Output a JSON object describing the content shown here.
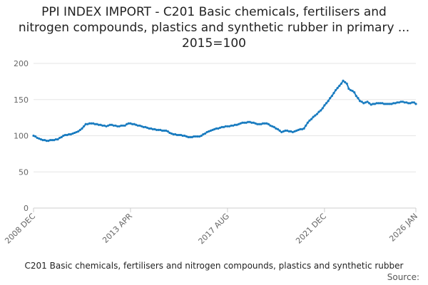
{
  "chart_data": {
    "type": "line",
    "title": "PPI INDEX IMPORT - C201 Basic chemicals, fertilisers and nitrogen compounds, plastics and synthetic rubber in primary ... 2015=100",
    "categories": [
      "2008 DEC",
      null,
      null,
      null,
      null,
      null,
      null,
      null,
      null,
      null,
      null,
      null,
      null,
      null,
      null,
      null,
      null,
      null,
      null,
      null,
      null,
      null,
      null,
      null,
      null,
      null,
      null,
      null,
      null,
      null,
      null,
      null,
      null,
      null,
      null,
      null,
      null,
      null,
      null,
      null,
      null,
      null,
      null,
      null,
      null,
      null,
      null,
      null,
      null,
      null,
      null,
      null,
      "2013 APR",
      null,
      null,
      null,
      null,
      null,
      null,
      null,
      null,
      null,
      null,
      null,
      null,
      null,
      null,
      null,
      null,
      null,
      null,
      null,
      null,
      null,
      null,
      null,
      null,
      null,
      null,
      null,
      null,
      null,
      null,
      null,
      null,
      null,
      null,
      null,
      null,
      null,
      null,
      null,
      null,
      null,
      null,
      null,
      null,
      null,
      null,
      null,
      null,
      null,
      null,
      null,
      "2017 AUG",
      null,
      null,
      null,
      null,
      null,
      null,
      null,
      null,
      null,
      null,
      null,
      null,
      null,
      null,
      null,
      null,
      null,
      null,
      null,
      null,
      null,
      null,
      null,
      null,
      null,
      null,
      null,
      null,
      null,
      null,
      null,
      null,
      null,
      null,
      null,
      null,
      null,
      null,
      null,
      null,
      null,
      null,
      null,
      null,
      null,
      null,
      null,
      null,
      null,
      null,
      null,
      "2021 DEC",
      null,
      null,
      null,
      null,
      null,
      null,
      null,
      null,
      null,
      null,
      null,
      null,
      null,
      null,
      null,
      null,
      null,
      null,
      null,
      null,
      null,
      null,
      null,
      null,
      null,
      null,
      null,
      null,
      null,
      null,
      null,
      null,
      null,
      null,
      null,
      null,
      null,
      null,
      null,
      null,
      null,
      null,
      null,
      null,
      null,
      null,
      null,
      null,
      "2026 JAN"
    ],
    "series": [
      {
        "name": "C201 Basic chemicals, fertilisers and nitrogen compounds, plastics and synthetic rubber",
        "color": "#1a7cc0",
        "values": [
          100,
          99,
          97,
          96,
          95,
          94,
          94,
          93,
          93,
          94,
          94,
          94,
          95,
          95,
          97,
          98,
          100,
          101,
          101,
          102,
          102,
          103,
          104,
          105,
          106,
          108,
          110,
          113,
          116,
          116,
          117,
          117,
          117,
          116,
          116,
          115,
          115,
          114,
          114,
          113,
          114,
          115,
          115,
          114,
          114,
          113,
          113,
          114,
          114,
          114,
          116,
          117,
          117,
          116,
          116,
          115,
          114,
          114,
          113,
          112,
          112,
          111,
          110,
          110,
          109,
          109,
          108,
          108,
          108,
          107,
          107,
          107,
          106,
          104,
          103,
          102,
          102,
          101,
          101,
          101,
          100,
          100,
          99,
          98,
          98,
          98,
          99,
          99,
          99,
          99,
          100,
          102,
          103,
          105,
          106,
          107,
          108,
          109,
          110,
          110,
          111,
          112,
          112,
          113,
          113,
          113,
          114,
          114,
          115,
          115,
          116,
          117,
          118,
          118,
          118,
          119,
          119,
          118,
          118,
          117,
          116,
          116,
          116,
          117,
          117,
          117,
          116,
          114,
          113,
          112,
          110,
          109,
          107,
          105,
          106,
          107,
          107,
          106,
          106,
          105,
          106,
          107,
          108,
          109,
          109,
          110,
          114,
          118,
          121,
          123,
          126,
          128,
          130,
          133,
          135,
          138,
          142,
          145,
          148,
          152,
          155,
          159,
          163,
          166,
          169,
          172,
          176,
          174,
          172,
          165,
          163,
          162,
          160,
          155,
          152,
          148,
          147,
          145,
          146,
          147,
          145,
          143,
          144,
          144,
          145,
          145,
          145,
          145,
          144,
          144,
          144,
          144,
          144,
          145,
          145,
          146,
          146,
          147,
          147,
          146,
          146,
          145,
          145,
          146,
          146,
          144
        ]
      }
    ],
    "source": "Source:",
    "ylim": [
      0,
      200
    ],
    "yticks": [
      0,
      50,
      100,
      150,
      200
    ],
    "grid": true
  }
}
